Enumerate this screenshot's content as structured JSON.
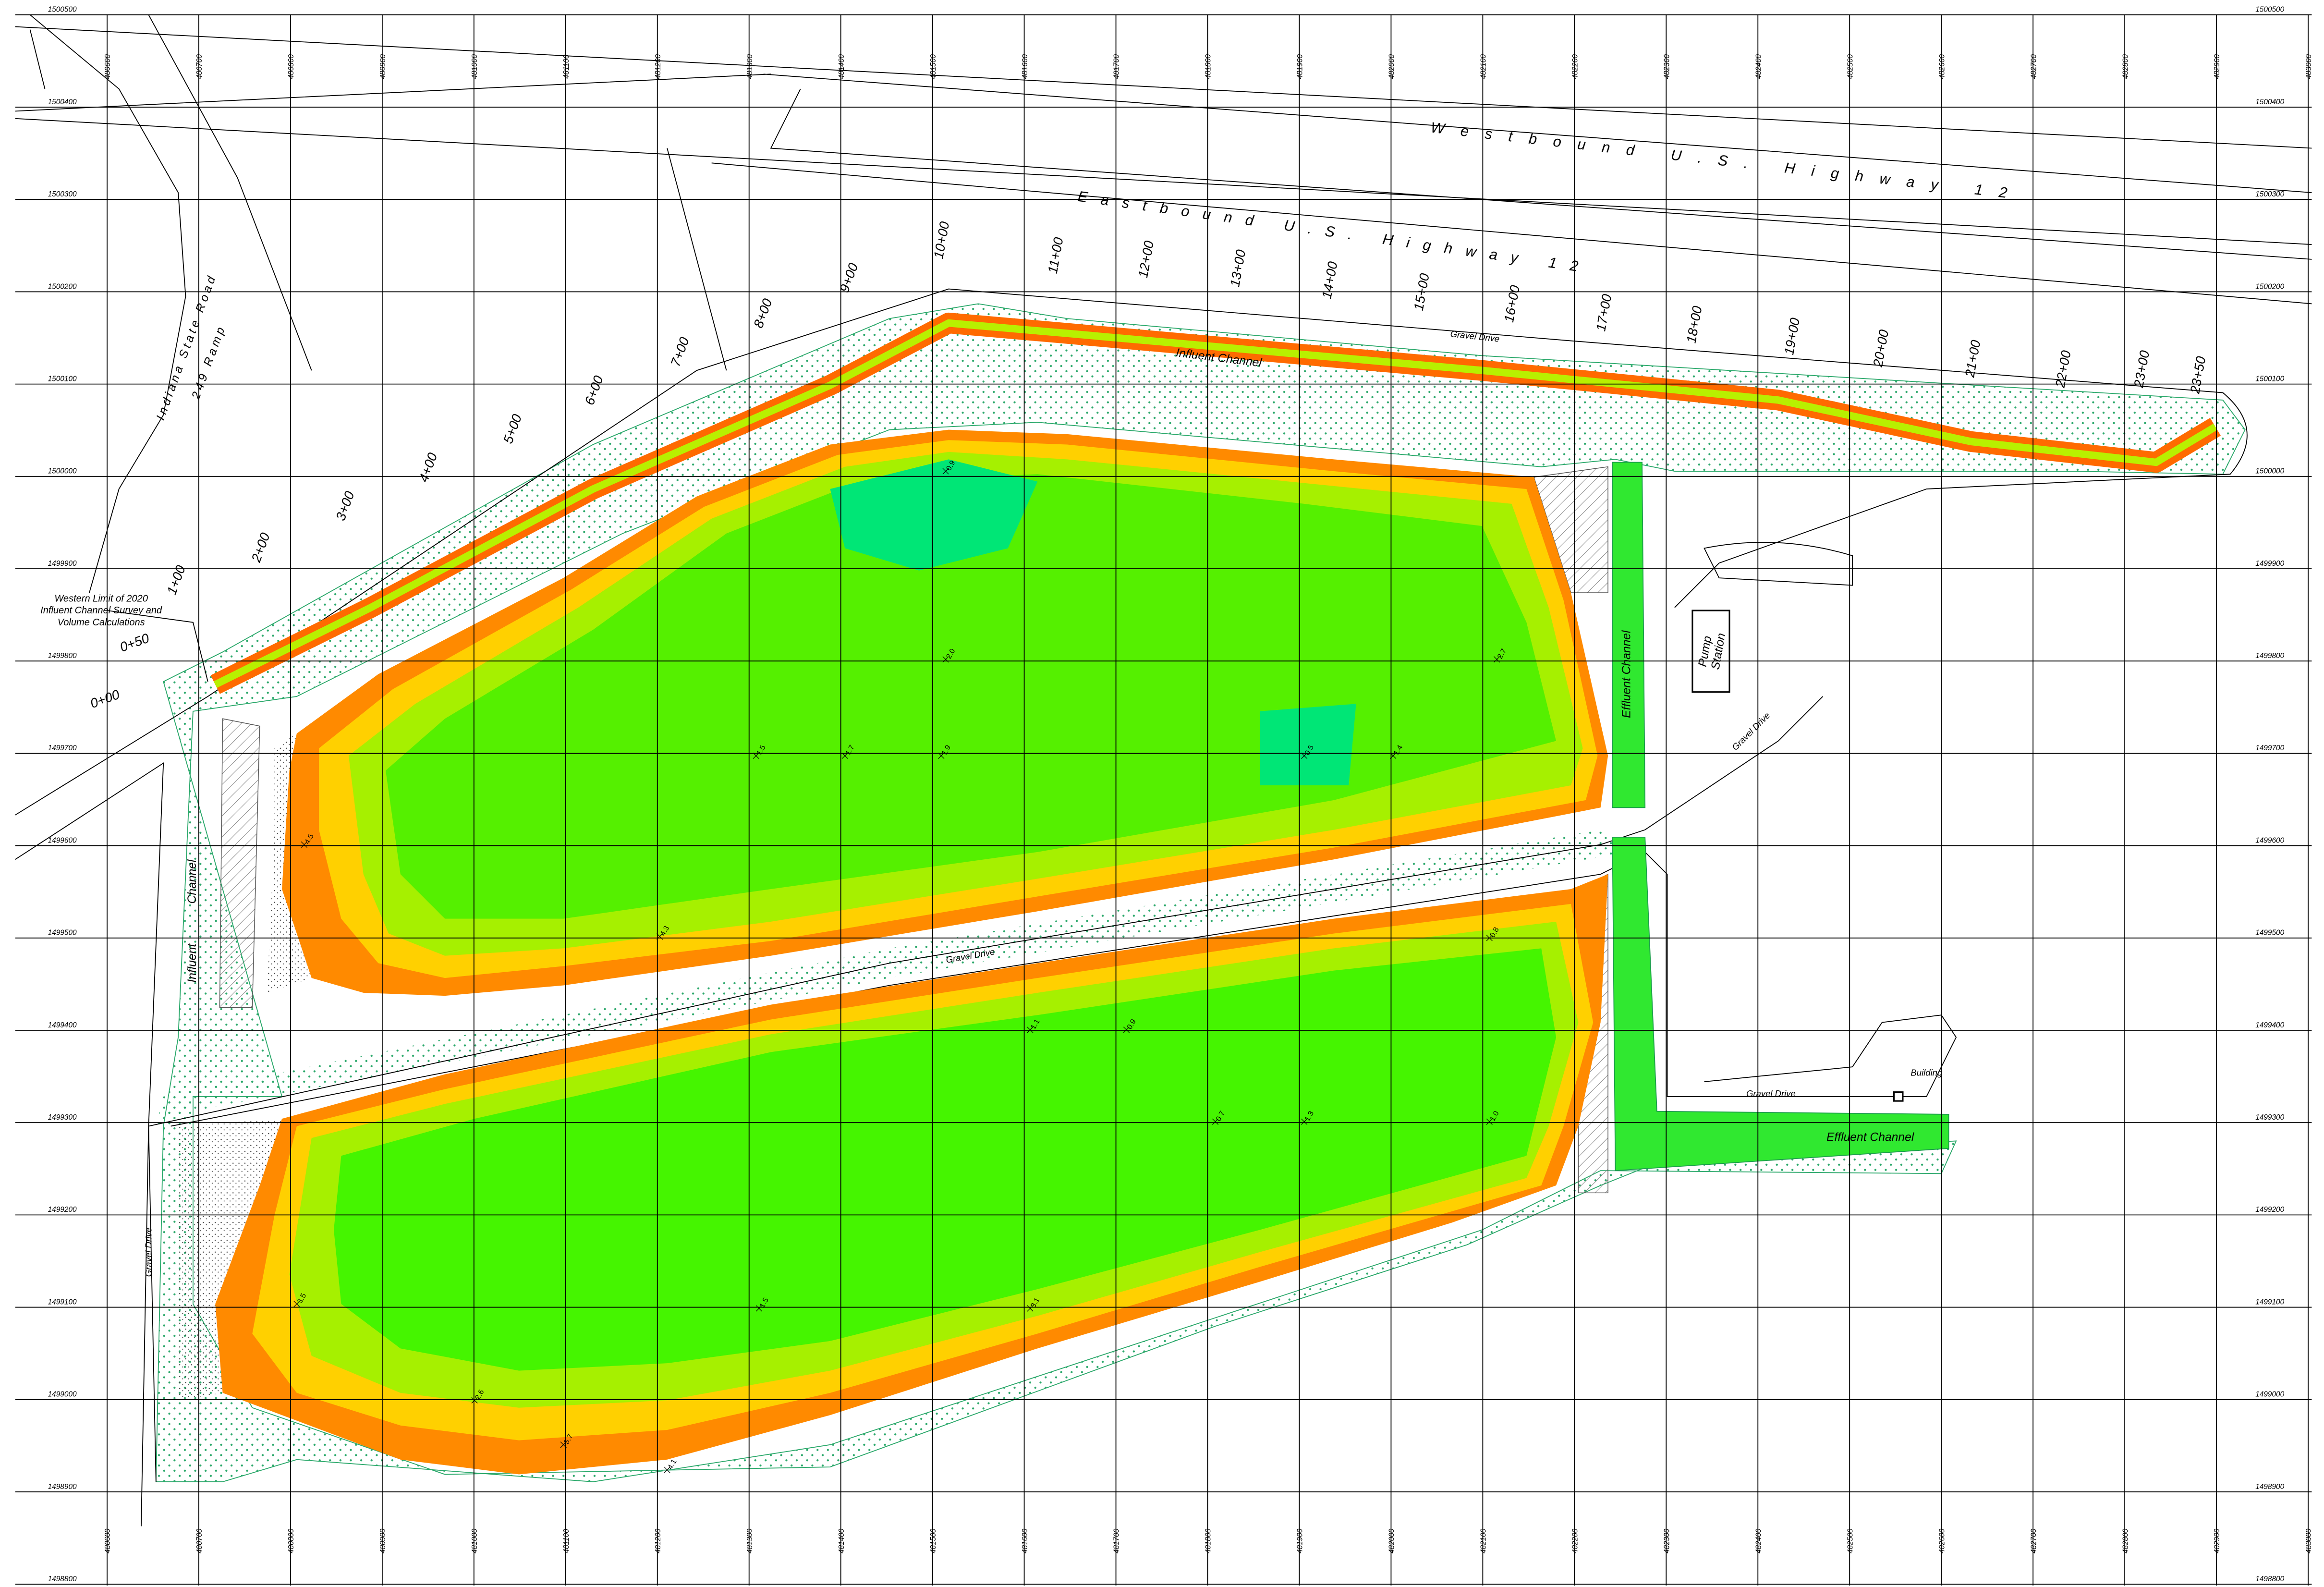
{
  "grid": {
    "eastings": [
      "480600",
      "480700",
      "480800",
      "480900",
      "481000",
      "481100",
      "481200",
      "481300",
      "481400",
      "481500",
      "481600",
      "481700",
      "481800",
      "481900",
      "482000",
      "482100",
      "482200",
      "482300",
      "482400",
      "482500",
      "482600",
      "482700",
      "482800",
      "482900",
      "483000"
    ],
    "northings": [
      "1500500",
      "1500400",
      "1500300",
      "1500200",
      "1500100",
      "1500000",
      "1499900",
      "1499800",
      "1499700",
      "1499600",
      "1499500",
      "1499400",
      "1499300",
      "1499200",
      "1499100",
      "1499000",
      "1498900",
      "1498800"
    ]
  },
  "stations": [
    "0+00",
    "0+50",
    "1+00",
    "2+00",
    "3+00",
    "4+00",
    "5+00",
    "6+00",
    "7+00",
    "8+00",
    "9+00",
    "10+00",
    "11+00",
    "12+00",
    "13+00",
    "14+00",
    "15+00",
    "16+00",
    "17+00",
    "18+00",
    "19+00",
    "20+00",
    "21+00",
    "22+00",
    "23+00",
    "23+50"
  ],
  "labels": {
    "westbound": "Westbound U.S. Highway 12",
    "eastbound": "Eastbound U.S. Highway 12",
    "state_road_1": "Indiana State Road",
    "state_road_2": "249 Ramp",
    "note": [
      "Western Limit of 2020",
      "Influent Channel Survey and",
      "Volume Calculations"
    ],
    "influent_top": "Influent Channel",
    "influent_west_1": "Influent",
    "influent_west_2": "Channel",
    "effluent_north": "Effluent Channel",
    "effluent_south": "Effluent Channel",
    "pump_station_1": "Pump",
    "pump_station_2": "Station",
    "building": "Building",
    "gravel_drive": [
      "Gravel Drive",
      "Gravel Drive",
      "Gravel Drive",
      "Gravel Drive",
      "Gravel Drive"
    ]
  },
  "spot_elevations": [
    "0.9",
    "2.0",
    "1.7",
    "1.5",
    "0.5",
    "1.4",
    "1.9",
    "2.7",
    "4.5",
    "4.3",
    "1.1",
    "0.9",
    "0.7",
    "1.3",
    "1.0",
    "0.8",
    "1.5",
    "2.6",
    "3.1",
    "5.7",
    "4.1",
    "3.5"
  ]
}
